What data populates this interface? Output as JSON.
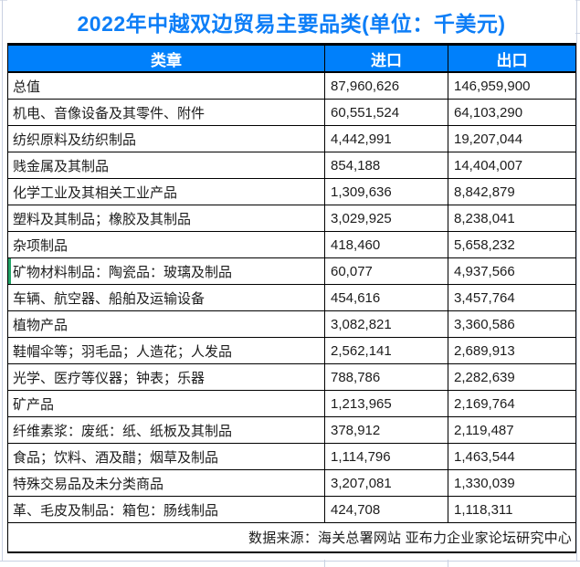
{
  "title": "2022年中越双边贸易主要品类(单位：千美元)",
  "source_note": "数据来源：海关总署网站 亚布力企业家论坛研究中心",
  "colors": {
    "title_blue": "#0d7ef7",
    "header_bg_blue": "#0080fb",
    "header_text": "#ffffff",
    "table_border": "#000000",
    "marker_green": "#21a366",
    "sheet_gridline": "#c9d1e2"
  },
  "chart_data": {
    "type": "table",
    "title": "2022年中越双边贸易主要品类(单位：千美元)",
    "unit": "千美元",
    "columns": [
      "类章",
      "进口",
      "出口"
    ],
    "rows": [
      {
        "category": "总值",
        "import": "87,960,626",
        "export": "146,959,900"
      },
      {
        "category": "机电、音像设备及其零件、附件",
        "import": "60,551,524",
        "export": "64,103,290"
      },
      {
        "category": "纺织原料及纺织制品",
        "import": "4,442,991",
        "export": "19,207,044"
      },
      {
        "category": "贱金属及其制品",
        "import": "854,188",
        "export": "14,404,007"
      },
      {
        "category": "化学工业及其相关工业产品",
        "import": "1,309,636",
        "export": "8,842,879"
      },
      {
        "category": "塑料及其制品；橡胶及其制品",
        "import": "3,029,925",
        "export": "8,238,041"
      },
      {
        "category": "杂项制品",
        "import": "418,460",
        "export": "5,658,232"
      },
      {
        "category": "矿物材料制品：陶瓷品：玻璃及制品",
        "import": "60,077",
        "export": "4,937,566"
      },
      {
        "category": "车辆、航空器、船舶及运输设备",
        "import": "454,616",
        "export": "3,457,764"
      },
      {
        "category": "植物产品",
        "import": "3,082,821",
        "export": "3,360,586"
      },
      {
        "category": "鞋帽伞等；羽毛品；人造花；人发品",
        "import": "2,562,141",
        "export": "2,689,913"
      },
      {
        "category": "光学、医疗等仪器；钟表；乐器",
        "import": "788,786",
        "export": "2,282,639"
      },
      {
        "category": "矿产品",
        "import": "1,213,965",
        "export": "2,169,764"
      },
      {
        "category": "纤维素浆：废纸：纸、纸板及其制品",
        "import": "378,912",
        "export": "2,119,487"
      },
      {
        "category": "食品；饮料、酒及醋；烟草及制品",
        "import": "1,114,796",
        "export": "1,463,544"
      },
      {
        "category": "特殊交易品及未分类商品",
        "import": "3,207,081",
        "export": "1,330,039"
      },
      {
        "category": "革、毛皮及制品：箱包：肠线制品",
        "import": "424,708",
        "export": "1,118,311"
      }
    ],
    "marker": {
      "row_index": 7,
      "description": "green-left-edge-marker"
    }
  }
}
